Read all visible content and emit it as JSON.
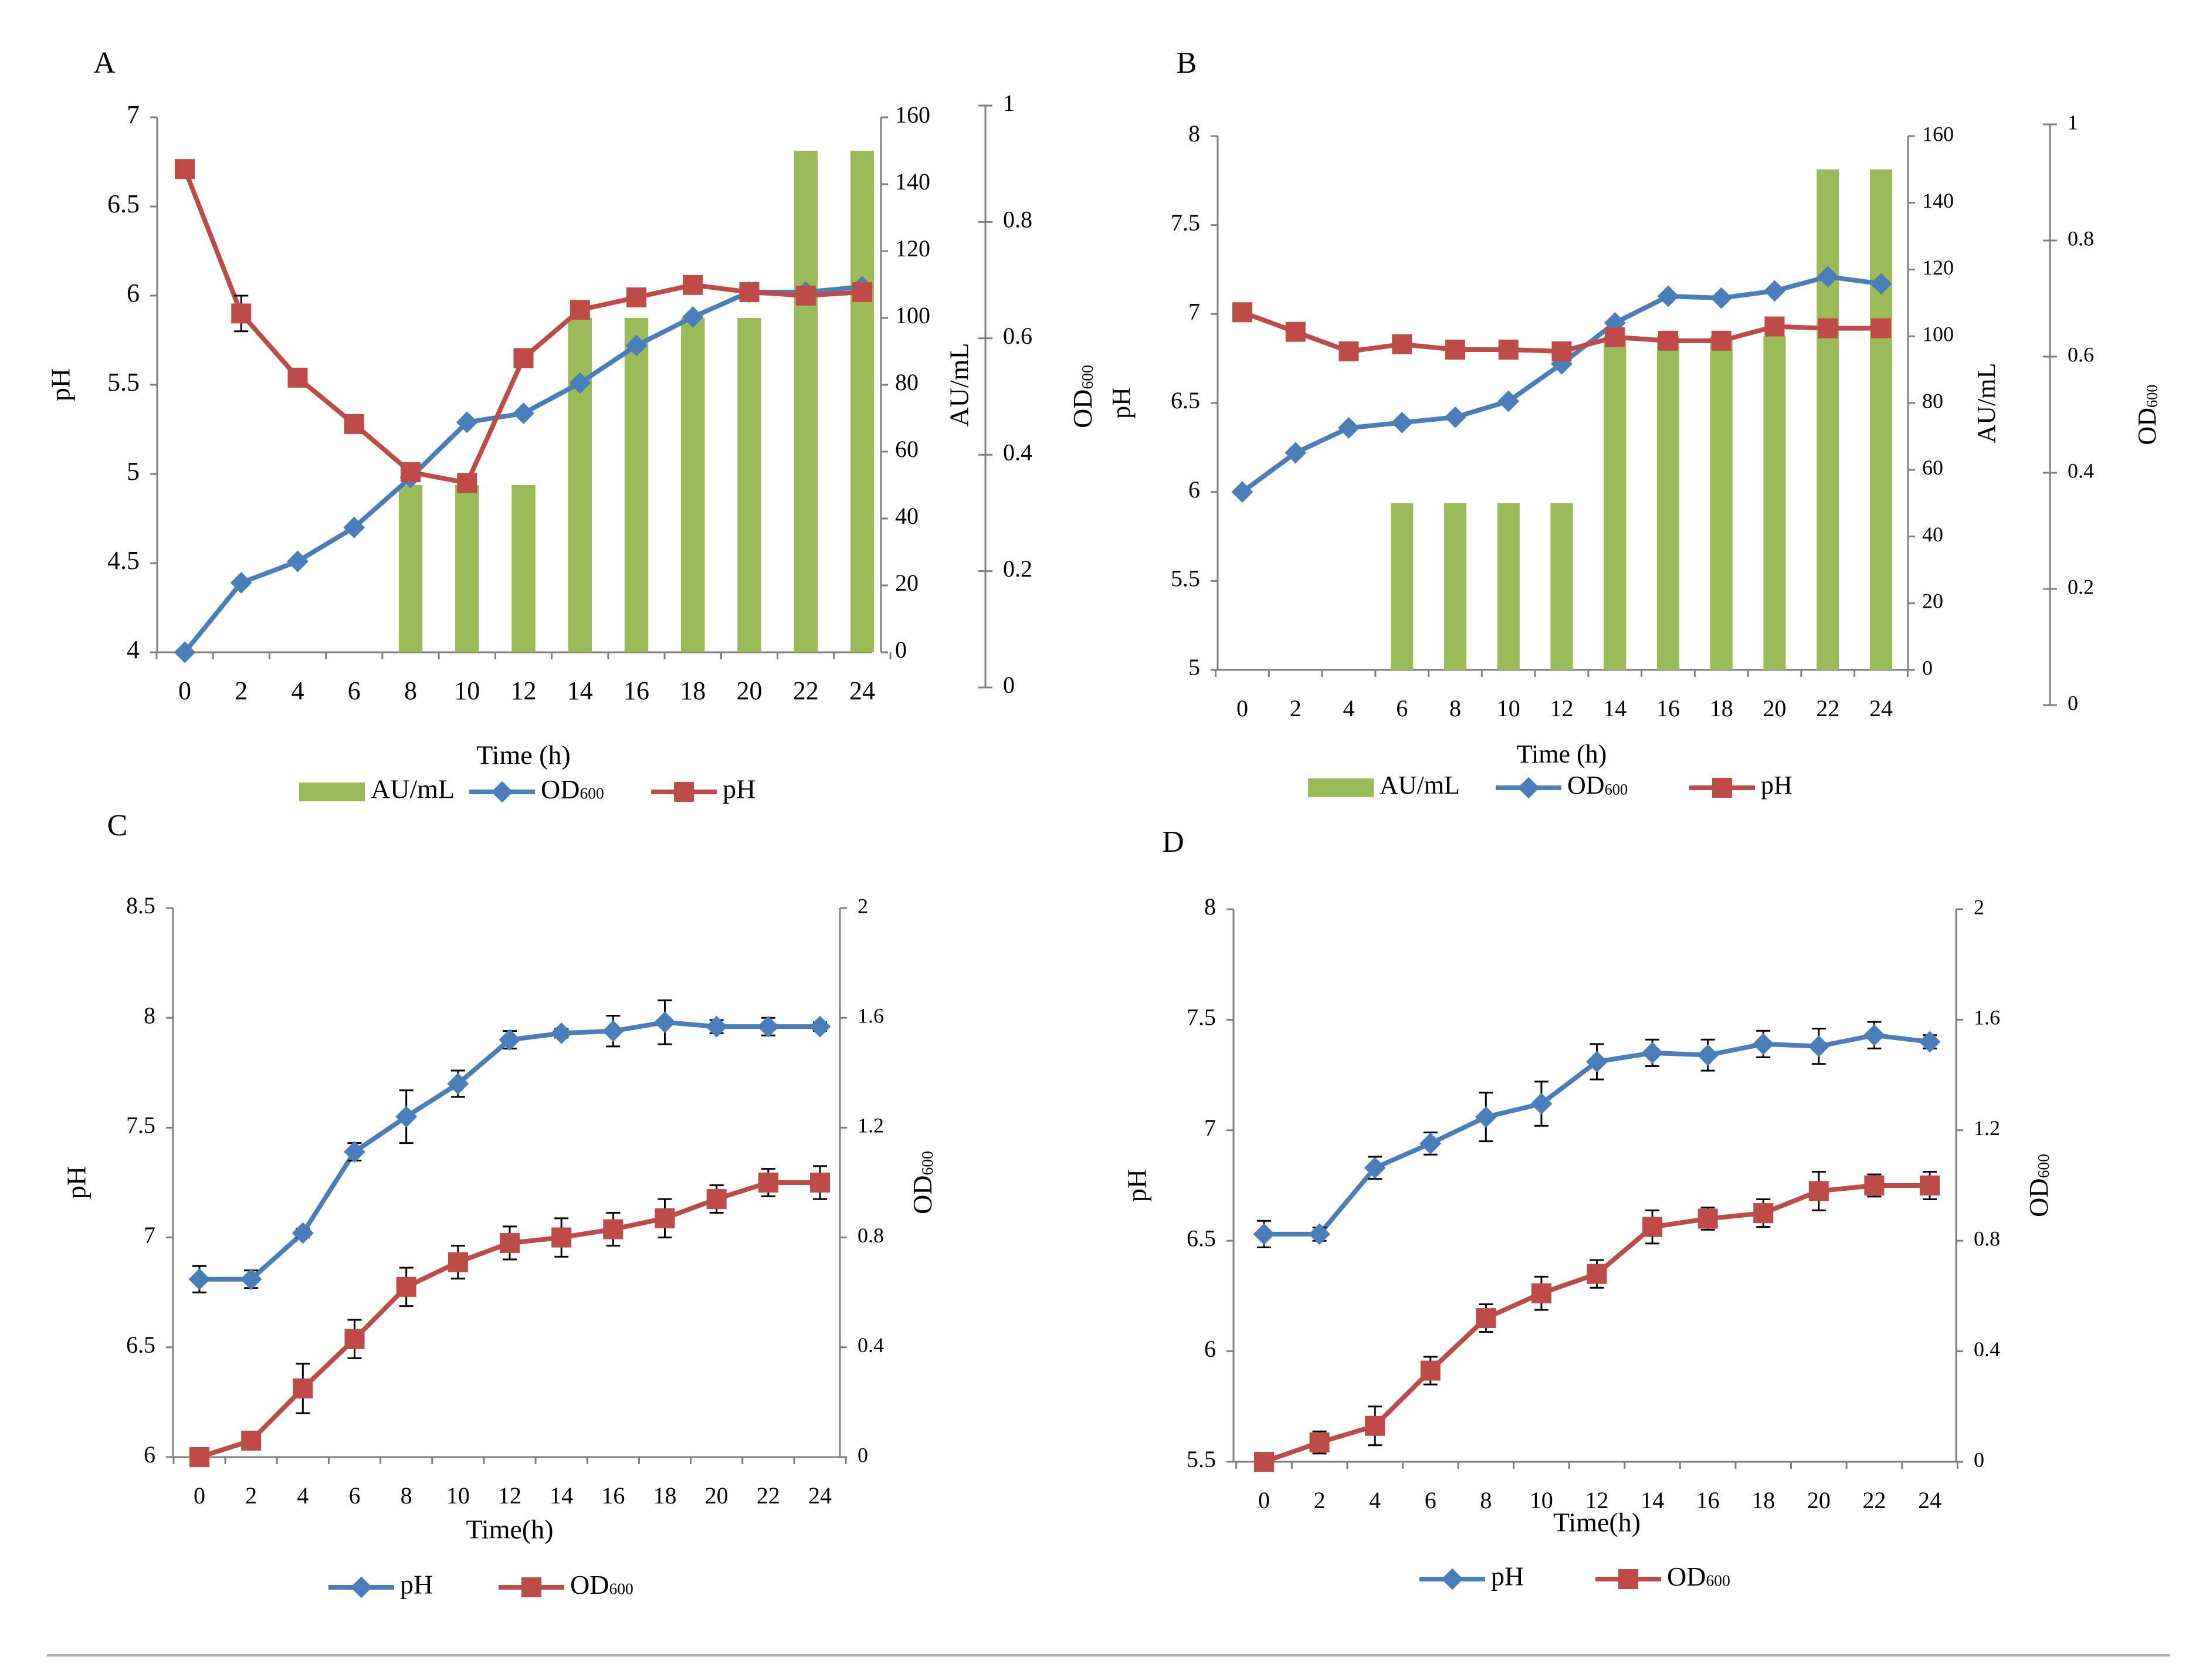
{
  "colors": {
    "blue": "#4A7EBB",
    "red": "#BE4B48",
    "green": "#9BBB59",
    "axis": "#7F7F7F",
    "text": "#000000"
  },
  "chart_data": [
    {
      "panel": "A",
      "type": "bar",
      "x": [
        0,
        2,
        4,
        6,
        8,
        10,
        12,
        14,
        16,
        18,
        20,
        22,
        24
      ],
      "xlabel": "Time (h)",
      "axes": {
        "left": {
          "label": "pH",
          "ylim": [
            4,
            7
          ],
          "ticks": [
            "4",
            "4.5",
            "5",
            "5.5",
            "6",
            "6.5",
            "7"
          ]
        },
        "right1": {
          "label": "AU/mL",
          "ylim": [
            0,
            160
          ],
          "ticks": [
            "0",
            "20",
            "40",
            "60",
            "80",
            "100",
            "120",
            "140",
            "160"
          ]
        },
        "right2": {
          "label": "OD600",
          "ylim": [
            0,
            1
          ],
          "ticks": [
            "0",
            "0.2",
            "0.4",
            "0.6",
            "0.8",
            "1"
          ]
        }
      },
      "bars": {
        "name": "AU/mL",
        "axis": "right1",
        "values": [
          0,
          0,
          0,
          0,
          50,
          50,
          50,
          100,
          100,
          100,
          100,
          150,
          150
        ]
      },
      "series": [
        {
          "name": "OD600",
          "axis": "left",
          "marker": "diamond",
          "color": "blue",
          "values": [
            4.0,
            4.39,
            4.51,
            4.7,
            4.98,
            5.29,
            5.34,
            5.51,
            5.72,
            5.88,
            6.02,
            6.02,
            6.05
          ]
        },
        {
          "name": "pH",
          "axis": "left",
          "marker": "square",
          "color": "red",
          "values": [
            6.71,
            5.9,
            5.54,
            5.28,
            5.01,
            4.95,
            5.65,
            5.92,
            5.99,
            6.06,
            6.02,
            6.0,
            6.02
          ],
          "error": [
            0,
            0.1,
            0.04,
            0.04,
            0,
            0,
            0,
            0.03,
            0,
            0,
            0.04,
            0,
            0
          ]
        }
      ],
      "legend": [
        "AU/mL",
        "OD600",
        "pH"
      ]
    },
    {
      "panel": "B",
      "type": "bar",
      "x": [
        0,
        2,
        4,
        6,
        8,
        10,
        12,
        14,
        16,
        18,
        20,
        22,
        24
      ],
      "xlabel": "Time (h)",
      "axes": {
        "left": {
          "label": "pH",
          "ylim": [
            5,
            8
          ],
          "ticks": [
            "5",
            "5.5",
            "6",
            "6.5",
            "7",
            "7.5",
            "8"
          ]
        },
        "right1": {
          "label": "AU/mL",
          "ylim": [
            0,
            160
          ],
          "ticks": [
            "0",
            "20",
            "40",
            "60",
            "80",
            "100",
            "120",
            "140",
            "160"
          ]
        },
        "right2": {
          "label": "OD600",
          "ylim": [
            0,
            1
          ],
          "ticks": [
            "0",
            "0.2",
            "0.4",
            "0.6",
            "0.8",
            "1"
          ]
        }
      },
      "bars": {
        "name": "AU/mL",
        "axis": "right1",
        "values": [
          0,
          0,
          0,
          50,
          50,
          50,
          50,
          100,
          100,
          100,
          100,
          150,
          150
        ]
      },
      "series": [
        {
          "name": "OD600",
          "axis": "left",
          "marker": "diamond",
          "color": "blue",
          "values": [
            6.0,
            6.22,
            6.36,
            6.39,
            6.42,
            6.51,
            6.72,
            6.95,
            7.1,
            7.09,
            7.13,
            7.21,
            7.17
          ]
        },
        {
          "name": "pH",
          "axis": "left",
          "marker": "square",
          "color": "red",
          "values": [
            7.01,
            6.9,
            6.79,
            6.83,
            6.8,
            6.8,
            6.79,
            6.87,
            6.85,
            6.85,
            6.93,
            6.92,
            6.92
          ]
        }
      ],
      "legend": [
        "AU/mL",
        "OD600",
        "pH"
      ]
    },
    {
      "panel": "C",
      "type": "line",
      "x": [
        0,
        2,
        4,
        6,
        8,
        10,
        12,
        14,
        16,
        18,
        20,
        22,
        24
      ],
      "xlabel": "Time(h)",
      "axes": {
        "left": {
          "label": "pH",
          "ylim": [
            6,
            8.5
          ],
          "ticks": [
            "6",
            "6.5",
            "7",
            "7.5",
            "8",
            "8.5"
          ]
        },
        "right2": {
          "label": "OD600",
          "ylim": [
            0,
            2
          ],
          "ticks": [
            "0",
            "0.4",
            "0.8",
            "1.2",
            "1.6",
            "2"
          ]
        }
      },
      "series": [
        {
          "name": "pH",
          "axis": "left",
          "marker": "diamond",
          "color": "blue",
          "values": [
            6.81,
            6.81,
            7.02,
            7.39,
            7.55,
            7.7,
            7.9,
            7.93,
            7.94,
            7.98,
            7.96,
            7.96,
            7.96
          ],
          "error": [
            0.06,
            0.04,
            0.02,
            0.04,
            0.12,
            0.06,
            0.04,
            0.02,
            0.07,
            0.1,
            0.03,
            0.04,
            0.02
          ]
        },
        {
          "name": "OD600",
          "axis": "right2",
          "marker": "square",
          "color": "red",
          "values": [
            0.0,
            0.06,
            0.25,
            0.43,
            0.62,
            0.71,
            0.78,
            0.8,
            0.83,
            0.87,
            0.94,
            1.0,
            1.0
          ],
          "error": [
            0,
            0.03,
            0.09,
            0.07,
            0.07,
            0.06,
            0.06,
            0.07,
            0.06,
            0.07,
            0.05,
            0.05,
            0.06
          ]
        }
      ],
      "legend": [
        "pH",
        "OD600"
      ]
    },
    {
      "panel": "D",
      "type": "line",
      "x": [
        0,
        2,
        4,
        6,
        8,
        10,
        12,
        14,
        16,
        18,
        20,
        22,
        24
      ],
      "xlabel": "Time(h)",
      "axes": {
        "left": {
          "label": "pH",
          "ylim": [
            5.5,
            8
          ],
          "ticks": [
            "5.5",
            "6",
            "6.5",
            "7",
            "7.5",
            "8"
          ]
        },
        "right2": {
          "label": "OD600",
          "ylim": [
            0,
            2
          ],
          "ticks": [
            "0",
            "0.4",
            "0.8",
            "1.2",
            "1.6",
            "2"
          ]
        }
      },
      "series": [
        {
          "name": "pH",
          "axis": "left",
          "marker": "diamond",
          "color": "blue",
          "values": [
            6.53,
            6.53,
            6.83,
            6.94,
            7.06,
            7.12,
            7.31,
            7.35,
            7.34,
            7.39,
            7.38,
            7.43,
            7.4
          ],
          "error": [
            0.06,
            0.03,
            0.05,
            0.05,
            0.11,
            0.1,
            0.08,
            0.06,
            0.07,
            0.06,
            0.08,
            0.06,
            0.03
          ]
        },
        {
          "name": "OD600",
          "axis": "right2",
          "marker": "square",
          "color": "red",
          "values": [
            0.0,
            0.07,
            0.13,
            0.33,
            0.52,
            0.61,
            0.68,
            0.85,
            0.88,
            0.9,
            0.98,
            1.0,
            1.0
          ],
          "error": [
            0,
            0.04,
            0.07,
            0.05,
            0.05,
            0.06,
            0.05,
            0.06,
            0.04,
            0.05,
            0.07,
            0.04,
            0.05
          ]
        }
      ],
      "legend": [
        "pH",
        "OD600"
      ]
    }
  ]
}
